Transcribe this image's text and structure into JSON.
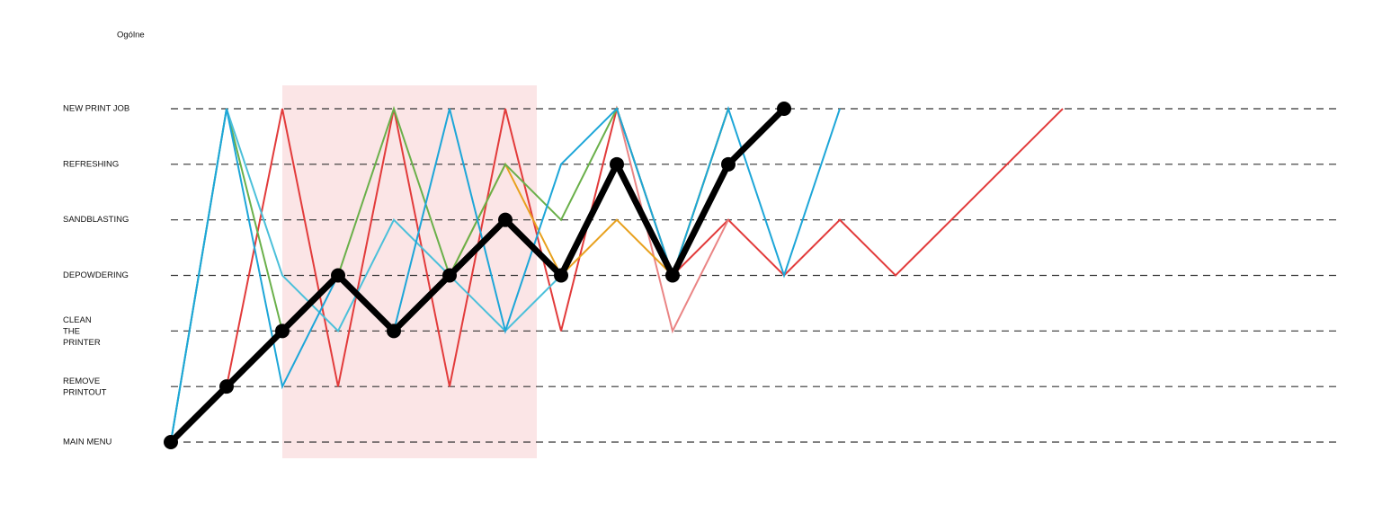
{
  "chart_data": {
    "type": "line",
    "title": "Ogólne",
    "categories": [
      null,
      null,
      null,
      null,
      null,
      null,
      null,
      null,
      null,
      null,
      null,
      null,
      null,
      null,
      null,
      null,
      null
    ],
    "ylim": [
      0,
      6
    ],
    "yticks": [
      {
        "value": 0,
        "label": "MAIN MENU"
      },
      {
        "value": 1,
        "label": "REMOVE\nPRINTOUT"
      },
      {
        "value": 2,
        "label": "CLEAN\nTHE\nPRINTER"
      },
      {
        "value": 3,
        "label": "DEPOWDERING"
      },
      {
        "value": 4,
        "label": "SANDBLASTING"
      },
      {
        "value": 5,
        "label": "REFRESHING"
      },
      {
        "value": 6,
        "label": "NEW PRINT JOB"
      }
    ],
    "grid": true,
    "series": [
      {
        "color": "#e23b3b",
        "width": 2,
        "values": [
          0,
          1,
          6,
          1,
          6,
          1,
          6,
          2,
          6,
          3,
          4,
          3,
          4,
          3,
          4,
          5,
          6
        ]
      },
      {
        "color": "#ea8585",
        "width": 2,
        "values": [
          null,
          null,
          null,
          null,
          null,
          null,
          null,
          null,
          6,
          2,
          4,
          null,
          null,
          null,
          null,
          null,
          null
        ]
      },
      {
        "color": "#e8a11e",
        "width": 2,
        "values": [
          0,
          1,
          2,
          3,
          2,
          3,
          5,
          3,
          4,
          3,
          6,
          null,
          null,
          null,
          null,
          null,
          null
        ]
      },
      {
        "color": "#6ab04a",
        "width": 2,
        "values": [
          0,
          6,
          2,
          3,
          6,
          3,
          5,
          4,
          6,
          3,
          6,
          null,
          null,
          null,
          null,
          null,
          null
        ]
      },
      {
        "color": "#4cc0da",
        "width": 2,
        "values": [
          0,
          6,
          3,
          2,
          4,
          3,
          2,
          3,
          null,
          null,
          null,
          null,
          null,
          null,
          null,
          null,
          null
        ]
      },
      {
        "color": "#1da6d8",
        "width": 2,
        "values": [
          0,
          6,
          1,
          3,
          2,
          6,
          2,
          5,
          6,
          3,
          6,
          3,
          6,
          null,
          null,
          null,
          null
        ]
      },
      {
        "color": "#000000",
        "width": 7,
        "markers": true,
        "values": [
          0,
          1,
          2,
          3,
          2,
          3,
          4,
          3,
          5,
          3,
          5,
          6,
          null,
          null,
          null,
          null,
          null
        ]
      }
    ]
  }
}
